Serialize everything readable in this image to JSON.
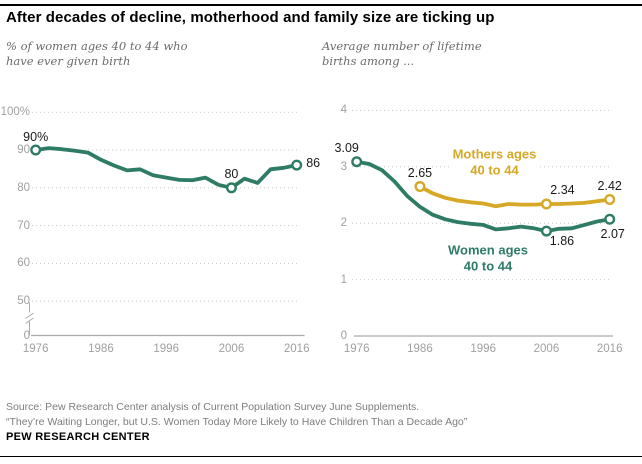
{
  "title": "After decades of decline, motherhood and family size are ticking up",
  "subtitles": {
    "left": {
      "line1": "% of women ages 40 to 44 who",
      "line2": "have ever given birth"
    },
    "right": {
      "line1": "Average number of lifetime",
      "line2": "births among ..."
    }
  },
  "colors": {
    "green": "#2e7c66",
    "gold": "#d7a826",
    "grid": "#c9c9c9",
    "axis_line": "#ababab",
    "axis_text": "#a0a0a0",
    "annotation_text": "#1a1a1a"
  },
  "chart_data": [
    {
      "type": "line",
      "title": "% of women ages 40 to 44 who have ever given birth",
      "x": [
        1976,
        1978,
        1980,
        1982,
        1984,
        1986,
        1988,
        1990,
        1992,
        1994,
        1996,
        1998,
        2000,
        2002,
        2004,
        2006,
        2008,
        2010,
        2012,
        2014,
        2016
      ],
      "series": [
        {
          "name": "Women ages 40 to 44 who have ever given birth",
          "color_key": "green",
          "values": [
            90,
            90.5,
            90.2,
            89.8,
            89.3,
            87.4,
            85.9,
            84.6,
            84.9,
            83.3,
            82.7,
            82.1,
            82.0,
            82.7,
            80.8,
            80,
            82.4,
            81.3,
            84.9,
            85.3,
            86
          ]
        }
      ],
      "ylim": [
        0,
        100
      ],
      "y_axis_break": true,
      "grid": "dotted",
      "yticks": [
        {
          "v": 100,
          "label": "100%"
        },
        {
          "v": 90,
          "label": "90"
        },
        {
          "v": 80,
          "label": "80"
        },
        {
          "v": 70,
          "label": "70"
        },
        {
          "v": 60,
          "label": "60"
        },
        {
          "v": 50,
          "label": "50"
        },
        {
          "v": 0,
          "label": "0"
        }
      ],
      "xticks": [
        {
          "v": 1976,
          "label": "1976"
        },
        {
          "v": 1986,
          "label": "1986"
        },
        {
          "v": 1996,
          "label": "1996"
        },
        {
          "v": 2006,
          "label": "2006"
        },
        {
          "v": 2016,
          "label": "2016"
        }
      ],
      "annotations": [
        {
          "series": "green",
          "x": 1976,
          "y": 90,
          "label": "90%",
          "placement": "above"
        },
        {
          "series": "green",
          "x": 2006,
          "y": 80,
          "label": "80",
          "placement": "above"
        },
        {
          "series": "green",
          "x": 2016,
          "y": 86,
          "label": "86",
          "placement": "right"
        }
      ]
    },
    {
      "type": "line",
      "title": "Average number of lifetime births among ...",
      "x": [
        1976,
        1978,
        1980,
        1982,
        1984,
        1986,
        1988,
        1990,
        1992,
        1994,
        1996,
        1998,
        2000,
        2002,
        2004,
        2006,
        2008,
        2010,
        2012,
        2014,
        2016
      ],
      "series": [
        {
          "name": "Mothers ages 40 to 44",
          "color_key": "gold",
          "x_start": 1986,
          "label": {
            "line1": "Mothers ages",
            "line2": "40 to 44"
          },
          "values": [
            2.65,
            2.53,
            2.45,
            2.4,
            2.37,
            2.35,
            2.3,
            2.34,
            2.33,
            2.33,
            2.34,
            2.34,
            2.35,
            2.36,
            2.39,
            2.42
          ]
        },
        {
          "name": "Women ages 40 to 44",
          "color_key": "green",
          "label": {
            "line1": "Women ages",
            "line2": "40 to 44"
          },
          "values": [
            3.09,
            3.05,
            2.94,
            2.74,
            2.48,
            2.29,
            2.15,
            2.07,
            2.02,
            1.99,
            1.97,
            1.89,
            1.91,
            1.94,
            1.91,
            1.86,
            1.9,
            1.91,
            1.97,
            2.03,
            2.07
          ]
        }
      ],
      "ylim": [
        0,
        4
      ],
      "y_axis_break": false,
      "grid": "dotted",
      "yticks": [
        {
          "v": 4,
          "label": "4"
        },
        {
          "v": 3,
          "label": "3"
        },
        {
          "v": 2,
          "label": "2"
        },
        {
          "v": 1,
          "label": "1"
        },
        {
          "v": 0,
          "label": "0"
        }
      ],
      "xticks": [
        {
          "v": 1976,
          "label": "1976"
        },
        {
          "v": 1986,
          "label": "1986"
        },
        {
          "v": 1996,
          "label": "1996"
        },
        {
          "v": 2006,
          "label": "2006"
        },
        {
          "v": 2016,
          "label": "2016"
        }
      ],
      "annotations": [
        {
          "series": "green",
          "x": 1976,
          "y": 3.09,
          "label": "3.09",
          "placement": "above-left"
        },
        {
          "series": "gold",
          "x": 1986,
          "y": 2.65,
          "label": "2.65",
          "placement": "above"
        },
        {
          "series": "gold",
          "x": 2006,
          "y": 2.34,
          "label": "2.34",
          "placement": "above-right"
        },
        {
          "series": "gold",
          "x": 2016,
          "y": 2.42,
          "label": "2.42",
          "placement": "above"
        },
        {
          "series": "green",
          "x": 2006,
          "y": 1.86,
          "label": "1.86",
          "placement": "below-right"
        },
        {
          "series": "green",
          "x": 2016,
          "y": 2.07,
          "label": "2.07",
          "placement": "below"
        }
      ]
    }
  ],
  "footer": {
    "source_line1": "Source: Pew Research Center analysis of Current Population Survey June Supplements.",
    "source_line2": "“They’re Waiting Longer, but U.S. Women Today More Likely to Have Children Than a Decade Ago”",
    "brand": "PEW RESEARCH CENTER"
  }
}
